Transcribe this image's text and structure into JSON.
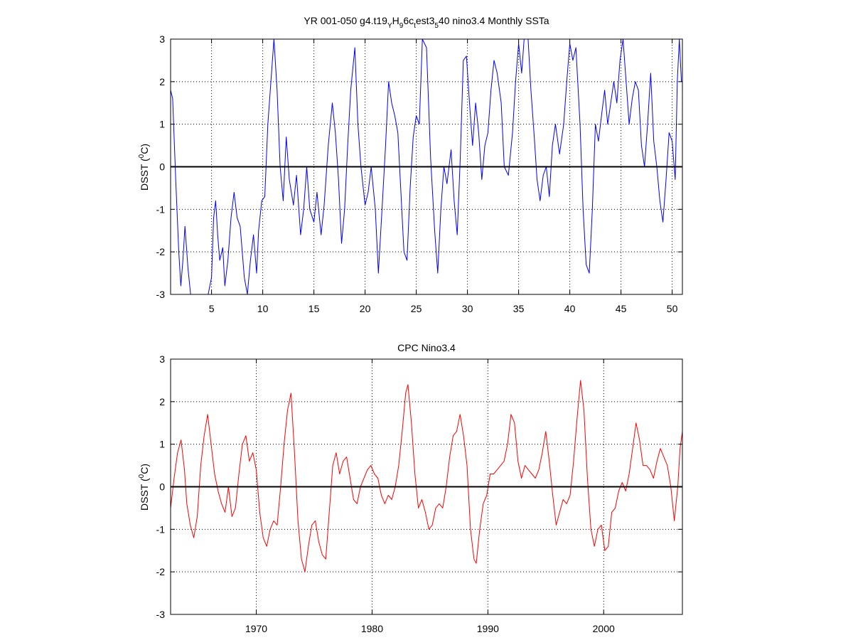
{
  "chart_data": [
    {
      "type": "line",
      "title_parts": [
        "YR 001-050 g4.t19",
        "Y",
        "H",
        "9",
        "6c",
        "t",
        "est3",
        "5",
        "40 nino3.4 Monthly SSTa"
      ],
      "ylabel_parts": [
        "DSST (",
        "0",
        "C)"
      ],
      "xlim": [
        1,
        51
      ],
      "ylim": [
        -3,
        3
      ],
      "xticks": [
        5,
        10,
        15,
        20,
        25,
        30,
        35,
        40,
        45,
        50
      ],
      "yticks": [
        -3,
        -2,
        -1,
        0,
        1,
        2,
        3
      ],
      "grid": true,
      "zero_line": true,
      "color": "#0000ff",
      "points": [
        [
          1.0,
          1.8
        ],
        [
          1.2,
          1.6
        ],
        [
          1.5,
          -0.3
        ],
        [
          1.8,
          -2.0
        ],
        [
          2.0,
          -2.8
        ],
        [
          2.2,
          -2.2
        ],
        [
          2.4,
          -1.4
        ],
        [
          2.7,
          -2.4
        ],
        [
          3.0,
          -3.1
        ],
        [
          3.5,
          -3.4
        ],
        [
          4.0,
          -3.5
        ],
        [
          4.5,
          -3.2
        ],
        [
          5.0,
          -2.6
        ],
        [
          5.2,
          -1.2
        ],
        [
          5.4,
          -0.8
        ],
        [
          5.6,
          -1.6
        ],
        [
          5.8,
          -2.2
        ],
        [
          6.1,
          -1.9
        ],
        [
          6.3,
          -2.8
        ],
        [
          6.6,
          -2.2
        ],
        [
          6.9,
          -1.2
        ],
        [
          7.2,
          -0.6
        ],
        [
          7.5,
          -1.2
        ],
        [
          7.8,
          -1.4
        ],
        [
          8.2,
          -2.6
        ],
        [
          8.5,
          -3.0
        ],
        [
          8.8,
          -2.2
        ],
        [
          9.1,
          -1.6
        ],
        [
          9.4,
          -2.5
        ],
        [
          9.6,
          -1.5
        ],
        [
          9.9,
          -0.8
        ],
        [
          10.2,
          -0.7
        ],
        [
          10.5,
          1.0
        ],
        [
          10.8,
          2.0
        ],
        [
          11.1,
          3.0
        ],
        [
          11.4,
          1.8
        ],
        [
          11.7,
          0.0
        ],
        [
          12.0,
          -0.8
        ],
        [
          12.3,
          0.7
        ],
        [
          12.6,
          -0.3
        ],
        [
          13.0,
          -0.9
        ],
        [
          13.3,
          -0.2
        ],
        [
          13.7,
          -1.6
        ],
        [
          14.0,
          -1.0
        ],
        [
          14.3,
          0.0
        ],
        [
          14.6,
          -1.0
        ],
        [
          15.0,
          -1.3
        ],
        [
          15.3,
          -0.6
        ],
        [
          15.7,
          -1.6
        ],
        [
          16.0,
          -0.9
        ],
        [
          16.4,
          0.5
        ],
        [
          16.8,
          1.5
        ],
        [
          17.1,
          0.8
        ],
        [
          17.4,
          -0.3
        ],
        [
          17.7,
          -1.8
        ],
        [
          18.0,
          -1.0
        ],
        [
          18.3,
          0.5
        ],
        [
          18.6,
          1.8
        ],
        [
          19.0,
          2.8
        ],
        [
          19.3,
          1.0
        ],
        [
          19.6,
          0.0
        ],
        [
          20.0,
          -0.9
        ],
        [
          20.3,
          -0.6
        ],
        [
          20.6,
          0.0
        ],
        [
          21.0,
          -1.0
        ],
        [
          21.3,
          -2.5
        ],
        [
          21.7,
          -0.8
        ],
        [
          22.0,
          0.5
        ],
        [
          22.3,
          2.0
        ],
        [
          22.6,
          1.5
        ],
        [
          22.9,
          1.2
        ],
        [
          23.2,
          0.8
        ],
        [
          23.5,
          -0.6
        ],
        [
          23.8,
          -2.0
        ],
        [
          24.1,
          -2.2
        ],
        [
          24.4,
          -0.5
        ],
        [
          24.7,
          0.7
        ],
        [
          25.0,
          1.2
        ],
        [
          25.3,
          1.0
        ],
        [
          25.6,
          3.0
        ],
        [
          26.0,
          2.8
        ],
        [
          26.4,
          0.2
        ],
        [
          26.8,
          -1.5
        ],
        [
          27.1,
          -2.5
        ],
        [
          27.4,
          -1.0
        ],
        [
          27.7,
          0.0
        ],
        [
          28.0,
          -0.4
        ],
        [
          28.4,
          0.4
        ],
        [
          28.7,
          -0.8
        ],
        [
          29.0,
          -1.6
        ],
        [
          29.3,
          0.2
        ],
        [
          29.6,
          2.5
        ],
        [
          29.9,
          2.6
        ],
        [
          30.2,
          1.5
        ],
        [
          30.5,
          0.5
        ],
        [
          30.8,
          1.5
        ],
        [
          31.1,
          0.8
        ],
        [
          31.4,
          -0.3
        ],
        [
          31.7,
          0.5
        ],
        [
          32.0,
          0.8
        ],
        [
          32.3,
          1.8
        ],
        [
          32.6,
          2.5
        ],
        [
          32.9,
          2.2
        ],
        [
          33.3,
          1.5
        ],
        [
          33.6,
          0.0
        ],
        [
          34.0,
          -0.2
        ],
        [
          34.4,
          0.8
        ],
        [
          34.7,
          2.0
        ],
        [
          35.0,
          2.9
        ],
        [
          35.3,
          2.2
        ],
        [
          35.6,
          3.2
        ],
        [
          35.9,
          3.1
        ],
        [
          36.2,
          1.8
        ],
        [
          36.5,
          0.8
        ],
        [
          36.8,
          -0.3
        ],
        [
          37.1,
          -0.8
        ],
        [
          37.4,
          -0.2
        ],
        [
          37.7,
          0.0
        ],
        [
          38.0,
          -0.7
        ],
        [
          38.3,
          0.5
        ],
        [
          38.6,
          1.0
        ],
        [
          39.0,
          0.3
        ],
        [
          39.4,
          1.0
        ],
        [
          39.7,
          2.0
        ],
        [
          40.0,
          2.9
        ],
        [
          40.3,
          2.5
        ],
        [
          40.6,
          2.8
        ],
        [
          41.0,
          1.0
        ],
        [
          41.3,
          -1.0
        ],
        [
          41.6,
          -2.3
        ],
        [
          41.9,
          -2.5
        ],
        [
          42.2,
          -1.0
        ],
        [
          42.5,
          1.0
        ],
        [
          42.8,
          0.6
        ],
        [
          43.1,
          1.2
        ],
        [
          43.4,
          1.8
        ],
        [
          43.7,
          1.0
        ],
        [
          44.0,
          1.5
        ],
        [
          44.3,
          2.0
        ],
        [
          44.6,
          1.5
        ],
        [
          44.9,
          2.5
        ],
        [
          45.2,
          3.0
        ],
        [
          45.5,
          2.0
        ],
        [
          45.8,
          1.0
        ],
        [
          46.1,
          1.6
        ],
        [
          46.4,
          2.0
        ],
        [
          46.7,
          1.8
        ],
        [
          47.0,
          0.5
        ],
        [
          47.3,
          0.0
        ],
        [
          47.6,
          1.0
        ],
        [
          47.9,
          2.2
        ],
        [
          48.2,
          0.6
        ],
        [
          48.5,
          0.0
        ],
        [
          48.8,
          -0.8
        ],
        [
          49.1,
          -1.3
        ],
        [
          49.4,
          -0.3
        ],
        [
          49.7,
          0.8
        ],
        [
          50.0,
          0.6
        ],
        [
          50.3,
          -0.3
        ],
        [
          50.5,
          2.0
        ],
        [
          50.7,
          3.0
        ],
        [
          50.9,
          2.0
        ],
        [
          51.0,
          2.0
        ]
      ]
    },
    {
      "type": "line",
      "title": "CPC Nino3.4",
      "ylabel_parts": [
        "DSST (",
        "0",
        "C)"
      ],
      "xlim": [
        1962.6,
        2006.8
      ],
      "ylim": [
        -3,
        3
      ],
      "xticks": [
        1970,
        1980,
        1990,
        2000
      ],
      "yticks": [
        -3,
        -2,
        -1,
        0,
        1,
        2,
        3
      ],
      "grid": true,
      "zero_line": true,
      "color": "#ff0000",
      "points": [
        [
          1962.6,
          -0.5
        ],
        [
          1962.9,
          0.2
        ],
        [
          1963.2,
          0.8
        ],
        [
          1963.5,
          1.1
        ],
        [
          1963.8,
          0.4
        ],
        [
          1964.0,
          -0.4
        ],
        [
          1964.3,
          -0.9
        ],
        [
          1964.6,
          -1.2
        ],
        [
          1964.9,
          -0.7
        ],
        [
          1965.2,
          0.5
        ],
        [
          1965.5,
          1.2
        ],
        [
          1965.8,
          1.7
        ],
        [
          1966.1,
          1.0
        ],
        [
          1966.4,
          0.3
        ],
        [
          1966.7,
          -0.1
        ],
        [
          1967.0,
          -0.4
        ],
        [
          1967.3,
          -0.6
        ],
        [
          1967.6,
          0.0
        ],
        [
          1967.9,
          -0.7
        ],
        [
          1968.2,
          -0.5
        ],
        [
          1968.5,
          0.3
        ],
        [
          1968.8,
          1.0
        ],
        [
          1969.1,
          1.2
        ],
        [
          1969.4,
          0.6
        ],
        [
          1969.7,
          0.8
        ],
        [
          1970.0,
          0.4
        ],
        [
          1970.3,
          -0.6
        ],
        [
          1970.6,
          -1.2
        ],
        [
          1970.9,
          -1.4
        ],
        [
          1971.2,
          -1.0
        ],
        [
          1971.5,
          -0.8
        ],
        [
          1971.8,
          -0.9
        ],
        [
          1972.1,
          0.0
        ],
        [
          1972.4,
          1.0
        ],
        [
          1972.7,
          1.8
        ],
        [
          1973.0,
          2.2
        ],
        [
          1973.3,
          0.8
        ],
        [
          1973.6,
          -0.8
        ],
        [
          1973.9,
          -1.7
        ],
        [
          1974.2,
          -2.0
        ],
        [
          1974.5,
          -1.4
        ],
        [
          1974.8,
          -0.9
        ],
        [
          1975.1,
          -0.8
        ],
        [
          1975.4,
          -1.3
        ],
        [
          1975.7,
          -1.6
        ],
        [
          1976.0,
          -1.7
        ],
        [
          1976.3,
          -0.6
        ],
        [
          1976.6,
          0.5
        ],
        [
          1976.9,
          0.8
        ],
        [
          1977.2,
          0.3
        ],
        [
          1977.5,
          0.6
        ],
        [
          1977.8,
          0.7
        ],
        [
          1978.1,
          0.2
        ],
        [
          1978.4,
          -0.3
        ],
        [
          1978.7,
          -0.4
        ],
        [
          1979.0,
          0.0
        ],
        [
          1979.3,
          0.2
        ],
        [
          1979.6,
          0.4
        ],
        [
          1979.9,
          0.5
        ],
        [
          1980.2,
          0.3
        ],
        [
          1980.5,
          0.2
        ],
        [
          1980.8,
          -0.2
        ],
        [
          1981.1,
          -0.4
        ],
        [
          1981.4,
          -0.2
        ],
        [
          1981.7,
          -0.3
        ],
        [
          1982.0,
          0.0
        ],
        [
          1982.3,
          0.5
        ],
        [
          1982.6,
          1.3
        ],
        [
          1982.9,
          2.2
        ],
        [
          1983.1,
          2.4
        ],
        [
          1983.4,
          1.5
        ],
        [
          1983.7,
          0.3
        ],
        [
          1984.0,
          -0.5
        ],
        [
          1984.3,
          -0.3
        ],
        [
          1984.6,
          -0.6
        ],
        [
          1984.9,
          -1.0
        ],
        [
          1985.2,
          -0.9
        ],
        [
          1985.5,
          -0.5
        ],
        [
          1985.8,
          -0.4
        ],
        [
          1986.1,
          -0.5
        ],
        [
          1986.4,
          0.0
        ],
        [
          1986.7,
          0.7
        ],
        [
          1987.0,
          1.2
        ],
        [
          1987.3,
          1.3
        ],
        [
          1987.6,
          1.7
        ],
        [
          1987.9,
          1.2
        ],
        [
          1988.2,
          0.5
        ],
        [
          1988.5,
          -1.0
        ],
        [
          1988.8,
          -1.7
        ],
        [
          1989.0,
          -1.8
        ],
        [
          1989.3,
          -1.0
        ],
        [
          1989.6,
          -0.4
        ],
        [
          1989.9,
          -0.2
        ],
        [
          1990.2,
          0.3
        ],
        [
          1990.5,
          0.3
        ],
        [
          1990.8,
          0.4
        ],
        [
          1991.1,
          0.5
        ],
        [
          1991.4,
          0.6
        ],
        [
          1991.7,
          1.0
        ],
        [
          1992.0,
          1.7
        ],
        [
          1992.3,
          1.5
        ],
        [
          1992.6,
          0.6
        ],
        [
          1992.9,
          0.2
        ],
        [
          1993.2,
          0.5
        ],
        [
          1993.5,
          0.4
        ],
        [
          1993.8,
          0.3
        ],
        [
          1994.1,
          0.2
        ],
        [
          1994.4,
          0.4
        ],
        [
          1994.7,
          0.8
        ],
        [
          1995.0,
          1.3
        ],
        [
          1995.3,
          0.6
        ],
        [
          1995.6,
          -0.2
        ],
        [
          1995.9,
          -0.9
        ],
        [
          1996.2,
          -0.6
        ],
        [
          1996.5,
          -0.3
        ],
        [
          1996.8,
          -0.4
        ],
        [
          1997.1,
          -0.2
        ],
        [
          1997.4,
          0.6
        ],
        [
          1997.7,
          1.6
        ],
        [
          1998.0,
          2.5
        ],
        [
          1998.3,
          1.8
        ],
        [
          1998.6,
          0.2
        ],
        [
          1998.9,
          -1.0
        ],
        [
          1999.2,
          -1.4
        ],
        [
          1999.5,
          -1.0
        ],
        [
          1999.8,
          -0.9
        ],
        [
          2000.1,
          -1.5
        ],
        [
          2000.4,
          -1.4
        ],
        [
          2000.7,
          -0.6
        ],
        [
          2001.0,
          -0.5
        ],
        [
          2001.3,
          -0.1
        ],
        [
          2001.6,
          0.1
        ],
        [
          2001.9,
          -0.1
        ],
        [
          2002.2,
          0.3
        ],
        [
          2002.5,
          0.9
        ],
        [
          2002.8,
          1.5
        ],
        [
          2003.1,
          1.1
        ],
        [
          2003.4,
          0.5
        ],
        [
          2003.7,
          0.5
        ],
        [
          2004.0,
          0.4
        ],
        [
          2004.3,
          0.2
        ],
        [
          2004.6,
          0.6
        ],
        [
          2004.9,
          0.9
        ],
        [
          2005.2,
          0.7
        ],
        [
          2005.5,
          0.5
        ],
        [
          2005.8,
          0.0
        ],
        [
          2006.1,
          -0.8
        ],
        [
          2006.4,
          0.0
        ],
        [
          2006.6,
          0.9
        ],
        [
          2006.8,
          1.3
        ]
      ]
    }
  ]
}
